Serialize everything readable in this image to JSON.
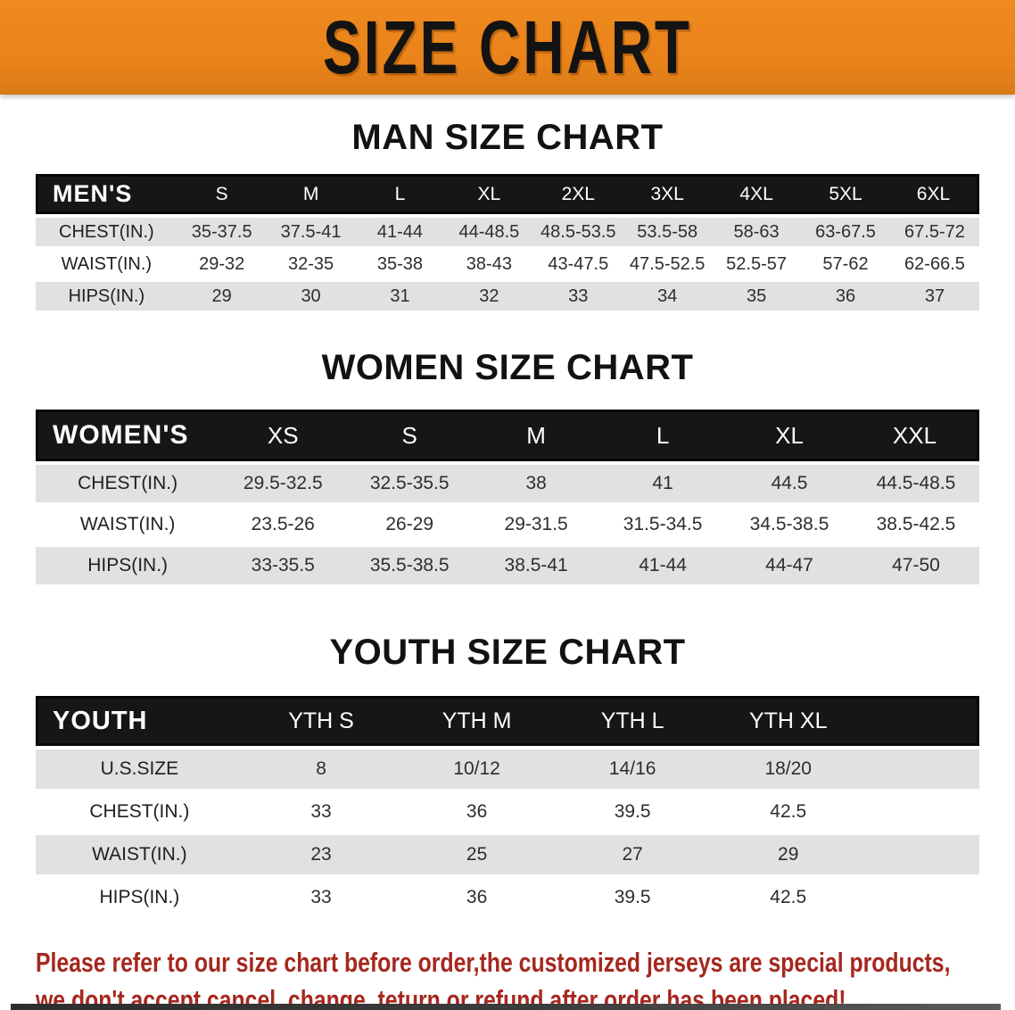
{
  "banner": {
    "title": "SIZE CHART",
    "bg_color": "#e8821a",
    "text_color": "#131313"
  },
  "sections": [
    {
      "title": "MAN SIZE CHART",
      "table": {
        "header_label": "MEN'S",
        "columns": [
          "S",
          "M",
          "L",
          "XL",
          "2XL",
          "3XL",
          "4XL",
          "5XL",
          "6XL"
        ],
        "rows": [
          {
            "label": "CHEST(IN.)",
            "values": [
              "35-37.5",
              "37.5-41",
              "41-44",
              "44-48.5",
              "48.5-53.5",
              "53.5-58",
              "58-63",
              "63-67.5",
              "67.5-72"
            ]
          },
          {
            "label": "WAIST(IN.)",
            "values": [
              "29-32",
              "32-35",
              "35-38",
              "38-43",
              "43-47.5",
              "47.5-52.5",
              "52.5-57",
              "57-62",
              "62-66.5"
            ]
          },
          {
            "label": "HIPS(IN.)",
            "values": [
              "29",
              "30",
              "31",
              "32",
              "33",
              "34",
              "35",
              "36",
              "37"
            ]
          }
        ]
      }
    },
    {
      "title": "WOMEN SIZE CHART",
      "table": {
        "header_label": "WOMEN'S",
        "columns": [
          "XS",
          "S",
          "M",
          "L",
          "XL",
          "XXL"
        ],
        "rows": [
          {
            "label": "CHEST(IN.)",
            "values": [
              "29.5-32.5",
              "32.5-35.5",
              "38",
              "41",
              "44.5",
              "44.5-48.5"
            ]
          },
          {
            "label": "WAIST(IN.)",
            "values": [
              "23.5-26",
              "26-29",
              "29-31.5",
              "31.5-34.5",
              "34.5-38.5",
              "38.5-42.5"
            ]
          },
          {
            "label": "HIPS(IN.)",
            "values": [
              "33-35.5",
              "35.5-38.5",
              "38.5-41",
              "41-44",
              "44-47",
              "47-50"
            ]
          }
        ]
      }
    },
    {
      "title": "YOUTH SIZE CHART",
      "table": {
        "header_label": "YOUTH",
        "columns": [
          "YTH S",
          "YTH M",
          "YTH L",
          "YTH XL"
        ],
        "rows": [
          {
            "label": "U.S.SIZE",
            "values": [
              "8",
              "10/12",
              "14/16",
              "18/20"
            ]
          },
          {
            "label": "CHEST(IN.)",
            "values": [
              "33",
              "36",
              "39.5",
              "42.5"
            ]
          },
          {
            "label": "WAIST(IN.)",
            "values": [
              "23",
              "25",
              "27",
              "29"
            ]
          },
          {
            "label": "HIPS(IN.)",
            "values": [
              "33",
              "36",
              "39.5",
              "42.5"
            ]
          }
        ]
      }
    }
  ],
  "footer": {
    "line1": "Please refer to our size chart before order,the customized jerseys are special products,",
    "line2": "we don't accept cancel, change, teturn or refund after order has been placed!"
  }
}
